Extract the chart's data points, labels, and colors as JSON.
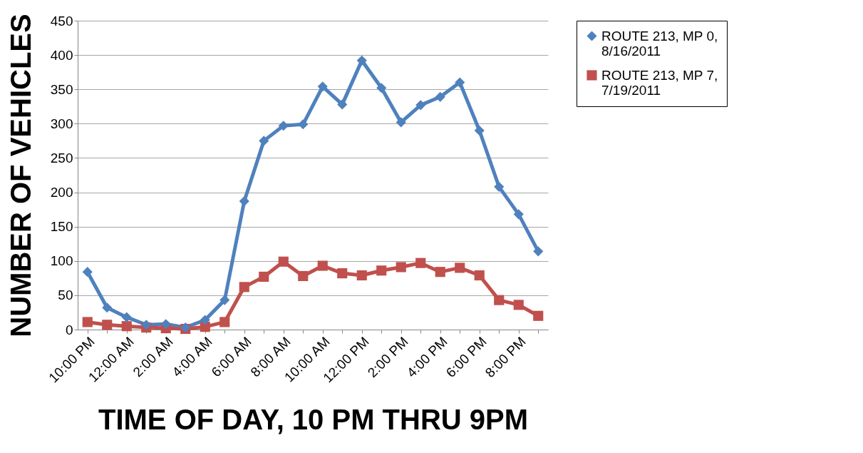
{
  "chart_data": {
    "type": "line",
    "xlabel": "TIME OF DAY, 10 PM THRU 9PM",
    "ylabel": "NUMBER OF VEHICLES",
    "categories": [
      "10:00 PM",
      null,
      "12:00 AM",
      null,
      "2:00 AM",
      null,
      "4:00 AM",
      null,
      "6:00 AM",
      null,
      "8:00 AM",
      null,
      "10:00 AM",
      null,
      "12:00 PM",
      null,
      "2:00 PM",
      null,
      "4:00 PM",
      null,
      "6:00 PM",
      null,
      "8:00 PM",
      null
    ],
    "series": [
      {
        "name": "ROUTE 213, MP 0, 8/16/2011",
        "color": "#4f81bd",
        "marker": "diamond",
        "values": [
          84,
          32,
          18,
          7,
          8,
          3,
          14,
          43,
          187,
          275,
          297,
          299,
          354,
          328,
          392,
          352,
          302,
          327,
          339,
          360,
          290,
          208,
          168,
          114
        ]
      },
      {
        "name": "ROUTE 213, MP 7, 7/19/2011",
        "color": "#c0504d",
        "marker": "square",
        "values": [
          11,
          7,
          5,
          3,
          2,
          1,
          4,
          11,
          62,
          77,
          99,
          78,
          93,
          82,
          79,
          86,
          91,
          97,
          84,
          90,
          79,
          43,
          36,
          20
        ]
      }
    ],
    "ylim": [
      0,
      450
    ],
    "yticks": [
      0,
      50,
      100,
      150,
      200,
      250,
      300,
      350,
      400,
      450
    ],
    "grid": "y",
    "legend": "right",
    "line_style": "solid"
  }
}
